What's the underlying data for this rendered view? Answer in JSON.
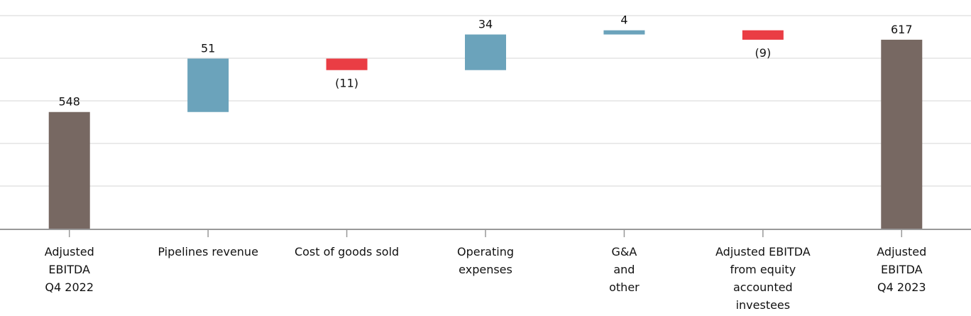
{
  "chart_data": {
    "type": "waterfall",
    "title": "",
    "xlabel": "",
    "ylabel": "",
    "ylim": [
      436,
      640
    ],
    "grid": true,
    "categories": [
      [
        "Adjusted",
        "EBITDA",
        "Q4 2022"
      ],
      [
        "Pipelines revenue"
      ],
      [
        "Cost of goods sold"
      ],
      [
        "Operating",
        "expenses"
      ],
      [
        "G&A",
        "and",
        "other"
      ],
      [
        "Adjusted EBITDA",
        "from equity",
        "accounted",
        "investees"
      ],
      [
        "Adjusted",
        "EBITDA",
        "Q4 2023"
      ]
    ],
    "values": [
      548,
      51,
      -11,
      34,
      4,
      -9,
      617
    ],
    "kinds": [
      "total",
      "delta",
      "delta",
      "delta",
      "delta",
      "delta",
      "total"
    ],
    "data_labels": [
      "548",
      "51",
      "(11)",
      "34",
      "4",
      "(9)",
      "617"
    ],
    "colors": {
      "total": "#776862",
      "increase": "#6BA3BB",
      "decrease": "#EA3D44",
      "grid": "#E3E3E3",
      "axis": "#999999"
    }
  }
}
